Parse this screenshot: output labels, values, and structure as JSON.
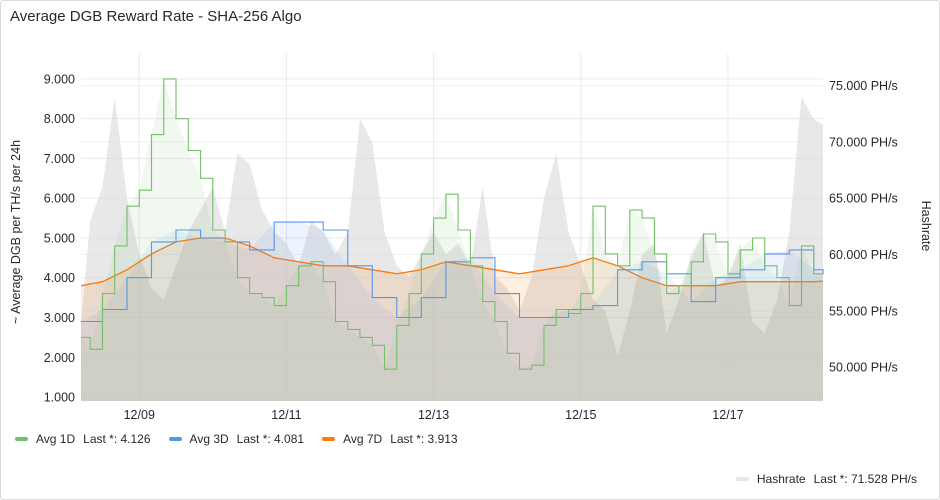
{
  "panel": {
    "title": "Average DGB Reward Rate - SHA-256 Algo"
  },
  "colors": {
    "avg1d": "#73bf69",
    "avg3d": "#5794f2",
    "avg7d": "#ff780a",
    "hashrate": "#d9d9d9"
  },
  "legend": {
    "items": [
      {
        "label": "Avg 1D",
        "last": "Last *: 4.126",
        "color": "#73bf69"
      },
      {
        "label": "Avg 3D",
        "last": "Last *: 4.081",
        "color": "#5794f2"
      },
      {
        "label": "Avg 7D",
        "last": "Last *: 3.913",
        "color": "#ff780a"
      }
    ],
    "hashrate": {
      "label": "Hashrate",
      "last": "Last *: 71.528 PH/s",
      "color": "#e6e6e6"
    }
  },
  "chart_data": {
    "type": "line",
    "title": "Average DGB Reward Rate - SHA-256 Algo",
    "ylabel": "~ Average DGB per TH/s per 24h",
    "y2label": "Hashrate",
    "ylim": [
      0.9,
      9.4
    ],
    "y2lim": [
      47000,
      77000
    ],
    "yticks": [
      "1.000",
      "2.000",
      "3.000",
      "4.000",
      "5.000",
      "6.000",
      "7.000",
      "8.000",
      "9.000"
    ],
    "y2ticks": [
      "50.000 PH/s",
      "55.000 PH/s",
      "60.000 PH/s",
      "65.000 PH/s",
      "70.000 PH/s",
      "75.000 PH/s"
    ],
    "xticks": [
      "12/09",
      "12/11",
      "12/13",
      "12/15",
      "12/17"
    ],
    "xlim": [
      "12/08 05:00",
      "12/18 07:00"
    ],
    "grid": true,
    "legend_position": "bottom",
    "series": [
      {
        "name": "Avg 1D",
        "axis": "left",
        "x": [
          "12/08 05:00",
          "12/08 08:00",
          "12/08 12:00",
          "12/08 16:00",
          "12/08 20:00",
          "12/09 00:00",
          "12/09 04:00",
          "12/09 08:00",
          "12/09 12:00",
          "12/09 16:00",
          "12/09 20:00",
          "12/10 00:00",
          "12/10 04:00",
          "12/10 08:00",
          "12/10 12:00",
          "12/10 16:00",
          "12/10 20:00",
          "12/11 00:00",
          "12/11 04:00",
          "12/11 08:00",
          "12/11 12:00",
          "12/11 16:00",
          "12/11 20:00",
          "12/12 00:00",
          "12/12 04:00",
          "12/12 08:00",
          "12/12 12:00",
          "12/12 16:00",
          "12/12 20:00",
          "12/13 00:00",
          "12/13 04:00",
          "12/13 08:00",
          "12/13 12:00",
          "12/13 16:00",
          "12/13 20:00",
          "12/14 00:00",
          "12/14 04:00",
          "12/14 08:00",
          "12/14 12:00",
          "12/14 16:00",
          "12/14 20:00",
          "12/15 00:00",
          "12/15 04:00",
          "12/15 08:00",
          "12/15 12:00",
          "12/15 16:00",
          "12/15 20:00",
          "12/16 00:00",
          "12/16 04:00",
          "12/16 08:00",
          "12/16 12:00",
          "12/16 16:00",
          "12/16 20:00",
          "12/17 00:00",
          "12/17 04:00",
          "12/17 08:00",
          "12/17 12:00",
          "12/17 16:00",
          "12/17 20:00",
          "12/18 00:00",
          "12/18 04:00",
          "12/18 07:00"
        ],
        "values": [
          2.5,
          2.2,
          3.6,
          4.8,
          5.8,
          6.2,
          7.6,
          9.0,
          8.0,
          7.2,
          6.5,
          5.2,
          4.9,
          4.0,
          3.6,
          3.5,
          3.3,
          3.8,
          4.3,
          4.4,
          3.9,
          2.9,
          2.7,
          2.5,
          2.3,
          1.7,
          2.8,
          3.6,
          4.6,
          5.5,
          6.1,
          5.2,
          4.3,
          3.4,
          2.9,
          2.1,
          1.7,
          1.8,
          2.8,
          3.2,
          3.1,
          3.6,
          5.8,
          4.6,
          4.3,
          5.7,
          5.5,
          4.6,
          3.6,
          3.8,
          4.4,
          5.1,
          4.9,
          4.1,
          4.7,
          5.0,
          4.3,
          4.0,
          3.3,
          4.8,
          4.1,
          4.126
        ]
      },
      {
        "name": "Avg 3D",
        "axis": "left",
        "x": [
          "12/08 05:00",
          "12/08 12:00",
          "12/08 20:00",
          "12/09 04:00",
          "12/09 12:00",
          "12/09 20:00",
          "12/10 04:00",
          "12/10 12:00",
          "12/10 20:00",
          "12/11 04:00",
          "12/11 12:00",
          "12/11 20:00",
          "12/12 04:00",
          "12/12 12:00",
          "12/12 20:00",
          "12/13 04:00",
          "12/13 12:00",
          "12/13 20:00",
          "12/14 04:00",
          "12/14 12:00",
          "12/14 20:00",
          "12/15 04:00",
          "12/15 12:00",
          "12/15 20:00",
          "12/16 04:00",
          "12/16 12:00",
          "12/16 20:00",
          "12/17 04:00",
          "12/17 12:00",
          "12/17 20:00",
          "12/18 04:00",
          "12/18 07:00"
        ],
        "values": [
          2.9,
          3.2,
          4.0,
          4.9,
          5.2,
          5.0,
          4.9,
          4.7,
          5.4,
          5.4,
          5.2,
          4.3,
          3.5,
          3.0,
          3.5,
          4.4,
          4.5,
          3.6,
          3.0,
          3.0,
          3.2,
          3.3,
          4.2,
          4.4,
          4.1,
          3.4,
          4.0,
          4.2,
          4.6,
          4.7,
          4.2,
          4.081
        ]
      },
      {
        "name": "Avg 7D",
        "axis": "left",
        "x": [
          "12/08 05:00",
          "12/08 12:00",
          "12/08 20:00",
          "12/09 04:00",
          "12/09 12:00",
          "12/09 20:00",
          "12/10 04:00",
          "12/10 12:00",
          "12/10 20:00",
          "12/11 04:00",
          "12/11 12:00",
          "12/11 20:00",
          "12/12 04:00",
          "12/12 12:00",
          "12/12 20:00",
          "12/13 04:00",
          "12/13 12:00",
          "12/13 20:00",
          "12/14 04:00",
          "12/14 12:00",
          "12/14 20:00",
          "12/15 04:00",
          "12/15 12:00",
          "12/15 20:00",
          "12/16 04:00",
          "12/16 12:00",
          "12/16 20:00",
          "12/17 04:00",
          "12/17 12:00",
          "12/17 20:00",
          "12/18 04:00",
          "12/18 07:00"
        ],
        "values": [
          3.8,
          3.9,
          4.2,
          4.6,
          4.9,
          5.0,
          5.0,
          4.8,
          4.5,
          4.4,
          4.3,
          4.3,
          4.2,
          4.1,
          4.2,
          4.4,
          4.3,
          4.2,
          4.1,
          4.2,
          4.3,
          4.5,
          4.3,
          4.0,
          3.8,
          3.8,
          3.8,
          3.9,
          3.9,
          3.9,
          3.9,
          3.913
        ]
      },
      {
        "name": "Hashrate",
        "axis": "right",
        "unit": "PH/s",
        "x": [
          "12/08 05:00",
          "12/08 08:00",
          "12/08 12:00",
          "12/08 16:00",
          "12/08 20:00",
          "12/09 00:00",
          "12/09 04:00",
          "12/09 08:00",
          "12/09 12:00",
          "12/09 16:00",
          "12/09 20:00",
          "12/10 00:00",
          "12/10 04:00",
          "12/10 08:00",
          "12/10 12:00",
          "12/10 16:00",
          "12/10 20:00",
          "12/11 00:00",
          "12/11 04:00",
          "12/11 08:00",
          "12/11 12:00",
          "12/11 16:00",
          "12/11 20:00",
          "12/12 00:00",
          "12/12 04:00",
          "12/12 08:00",
          "12/12 12:00",
          "12/12 16:00",
          "12/12 20:00",
          "12/13 00:00",
          "12/13 04:00",
          "12/13 08:00",
          "12/13 12:00",
          "12/13 16:00",
          "12/13 20:00",
          "12/14 00:00",
          "12/14 04:00",
          "12/14 08:00",
          "12/14 12:00",
          "12/14 16:00",
          "12/14 20:00",
          "12/15 00:00",
          "12/15 04:00",
          "12/15 08:00",
          "12/15 12:00",
          "12/15 16:00",
          "12/15 20:00",
          "12/16 00:00",
          "12/16 04:00",
          "12/16 08:00",
          "12/16 12:00",
          "12/16 16:00",
          "12/16 20:00",
          "12/17 00:00",
          "12/17 04:00",
          "12/17 08:00",
          "12/17 12:00",
          "12/17 16:00",
          "12/17 20:00",
          "12/18 00:00",
          "12/18 04:00",
          "12/18 07:00"
        ],
        "values": [
          54000,
          63000,
          66000,
          74000,
          65000,
          60000,
          57000,
          56000,
          59000,
          62000,
          64000,
          66000,
          62000,
          69000,
          68000,
          64000,
          62000,
          61000,
          59000,
          63000,
          62000,
          60000,
          62000,
          72000,
          70000,
          62000,
          59000,
          58000,
          60000,
          62000,
          60000,
          61000,
          59000,
          66000,
          58000,
          57000,
          55000,
          58000,
          65000,
          69000,
          62000,
          59000,
          56000,
          55000,
          51000,
          55000,
          60000,
          61000,
          53000,
          56000,
          60000,
          62000,
          57000,
          58000,
          61000,
          54000,
          53000,
          56000,
          62000,
          74000,
          72000,
          71528
        ]
      }
    ]
  }
}
